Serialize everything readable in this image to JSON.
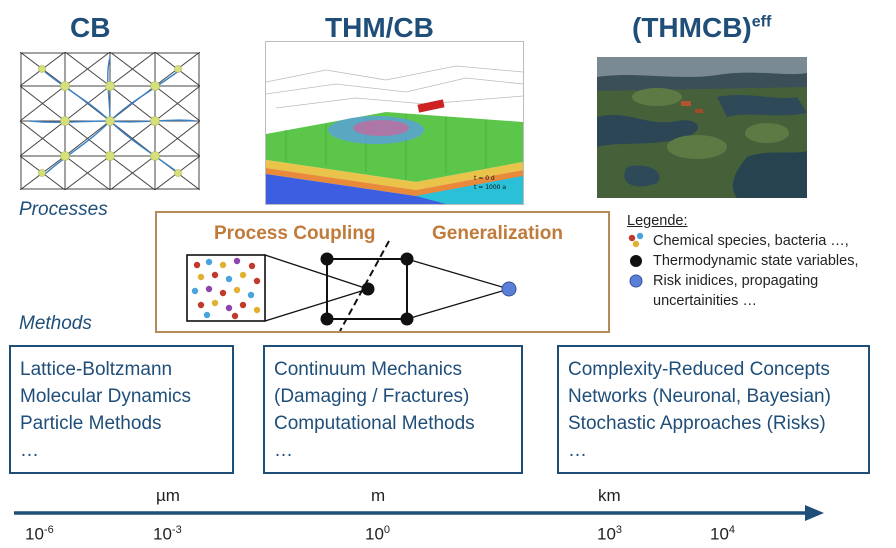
{
  "columns": [
    {
      "title": "CB",
      "title_sup": ""
    },
    {
      "title": "THM/CB",
      "title_sup": ""
    },
    {
      "title": "(THMCB)",
      "title_sup": "eff"
    }
  ],
  "sim_panel": {
    "caption_line1": "t = 0 d",
    "caption_line2": "t = 1000 a"
  },
  "labels": {
    "processes": "Processes",
    "methods": "Methods"
  },
  "coupling": {
    "left_heading": "Process Coupling",
    "right_heading": "Generalization"
  },
  "legend": {
    "title": "Legende:",
    "items": [
      {
        "text": "Chemical species, bacteria …,",
        "symbol": "colored-dots-icon"
      },
      {
        "text": "Thermodynamic state variables,",
        "symbol": "black-dot-icon"
      },
      {
        "text": "Risk inidices, propagating",
        "symbol": "blue-dot-icon"
      },
      {
        "text": "uncertainities …",
        "symbol": ""
      }
    ]
  },
  "method_boxes": [
    {
      "lines": [
        "Lattice-Boltzmann",
        "Molecular Dynamics",
        "Particle Methods",
        "…"
      ]
    },
    {
      "lines": [
        "Continuum Mechanics",
        "(Damaging / Fractures)",
        "Computational Methods",
        "…"
      ]
    },
    {
      "lines": [
        "Complexity-Reduced Concepts",
        "Networks (Neuronal, Bayesian)",
        "Stochastic Approaches (Risks)",
        "…"
      ]
    }
  ],
  "scale": {
    "units": [
      "µm",
      "m",
      "km"
    ],
    "ticks": [
      {
        "base": "10",
        "exp": "-6"
      },
      {
        "base": "10",
        "exp": "-3"
      },
      {
        "base": "10",
        "exp": "0"
      },
      {
        "base": "10",
        "exp": "3"
      },
      {
        "base": "10",
        "exp": "4"
      }
    ]
  },
  "colors": {
    "title_blue": "#1f4e79",
    "coupling_orange": "#c07a3a",
    "box_border": "#b48a56",
    "arrow": "#1f4e79"
  }
}
